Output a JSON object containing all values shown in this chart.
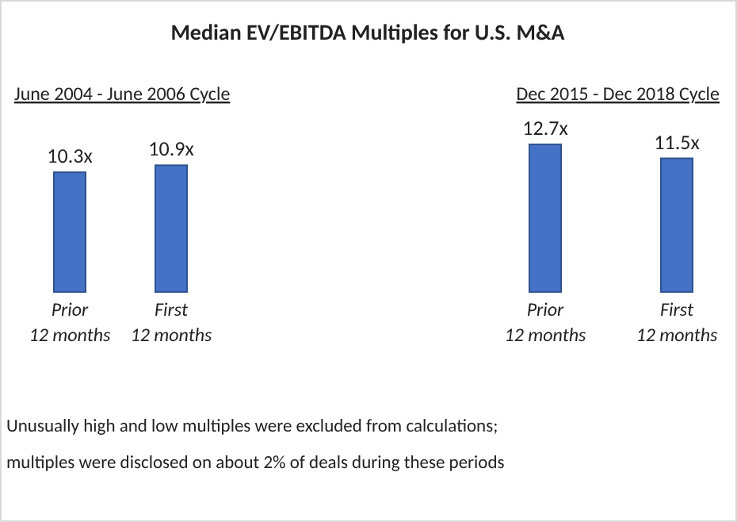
{
  "chart_data": [
    {
      "type": "bar",
      "title": "Median EV/EBITDA Multiples for U.S. M&A",
      "subtitle": "June 2004 - June 2006 Cycle",
      "categories": [
        "Prior\n12 months",
        "First\n12 months"
      ],
      "values": [
        10.3,
        10.9
      ],
      "value_labels": [
        "10.3x",
        "10.9x"
      ],
      "color": "#4472c4",
      "annotations": [
        "Unusually high and low multiples were excluded from calculations;",
        "multiples were disclosed on about 2% of deals during these periods"
      ]
    },
    {
      "type": "bar",
      "subtitle": "Dec 2015 - Dec 2018 Cycle",
      "categories": [
        "Prior\n12 months",
        "First\n12 months"
      ],
      "values": [
        12.7,
        11.5
      ],
      "value_labels": [
        "12.7x",
        "11.5x"
      ],
      "color": "#4472c4"
    }
  ]
}
